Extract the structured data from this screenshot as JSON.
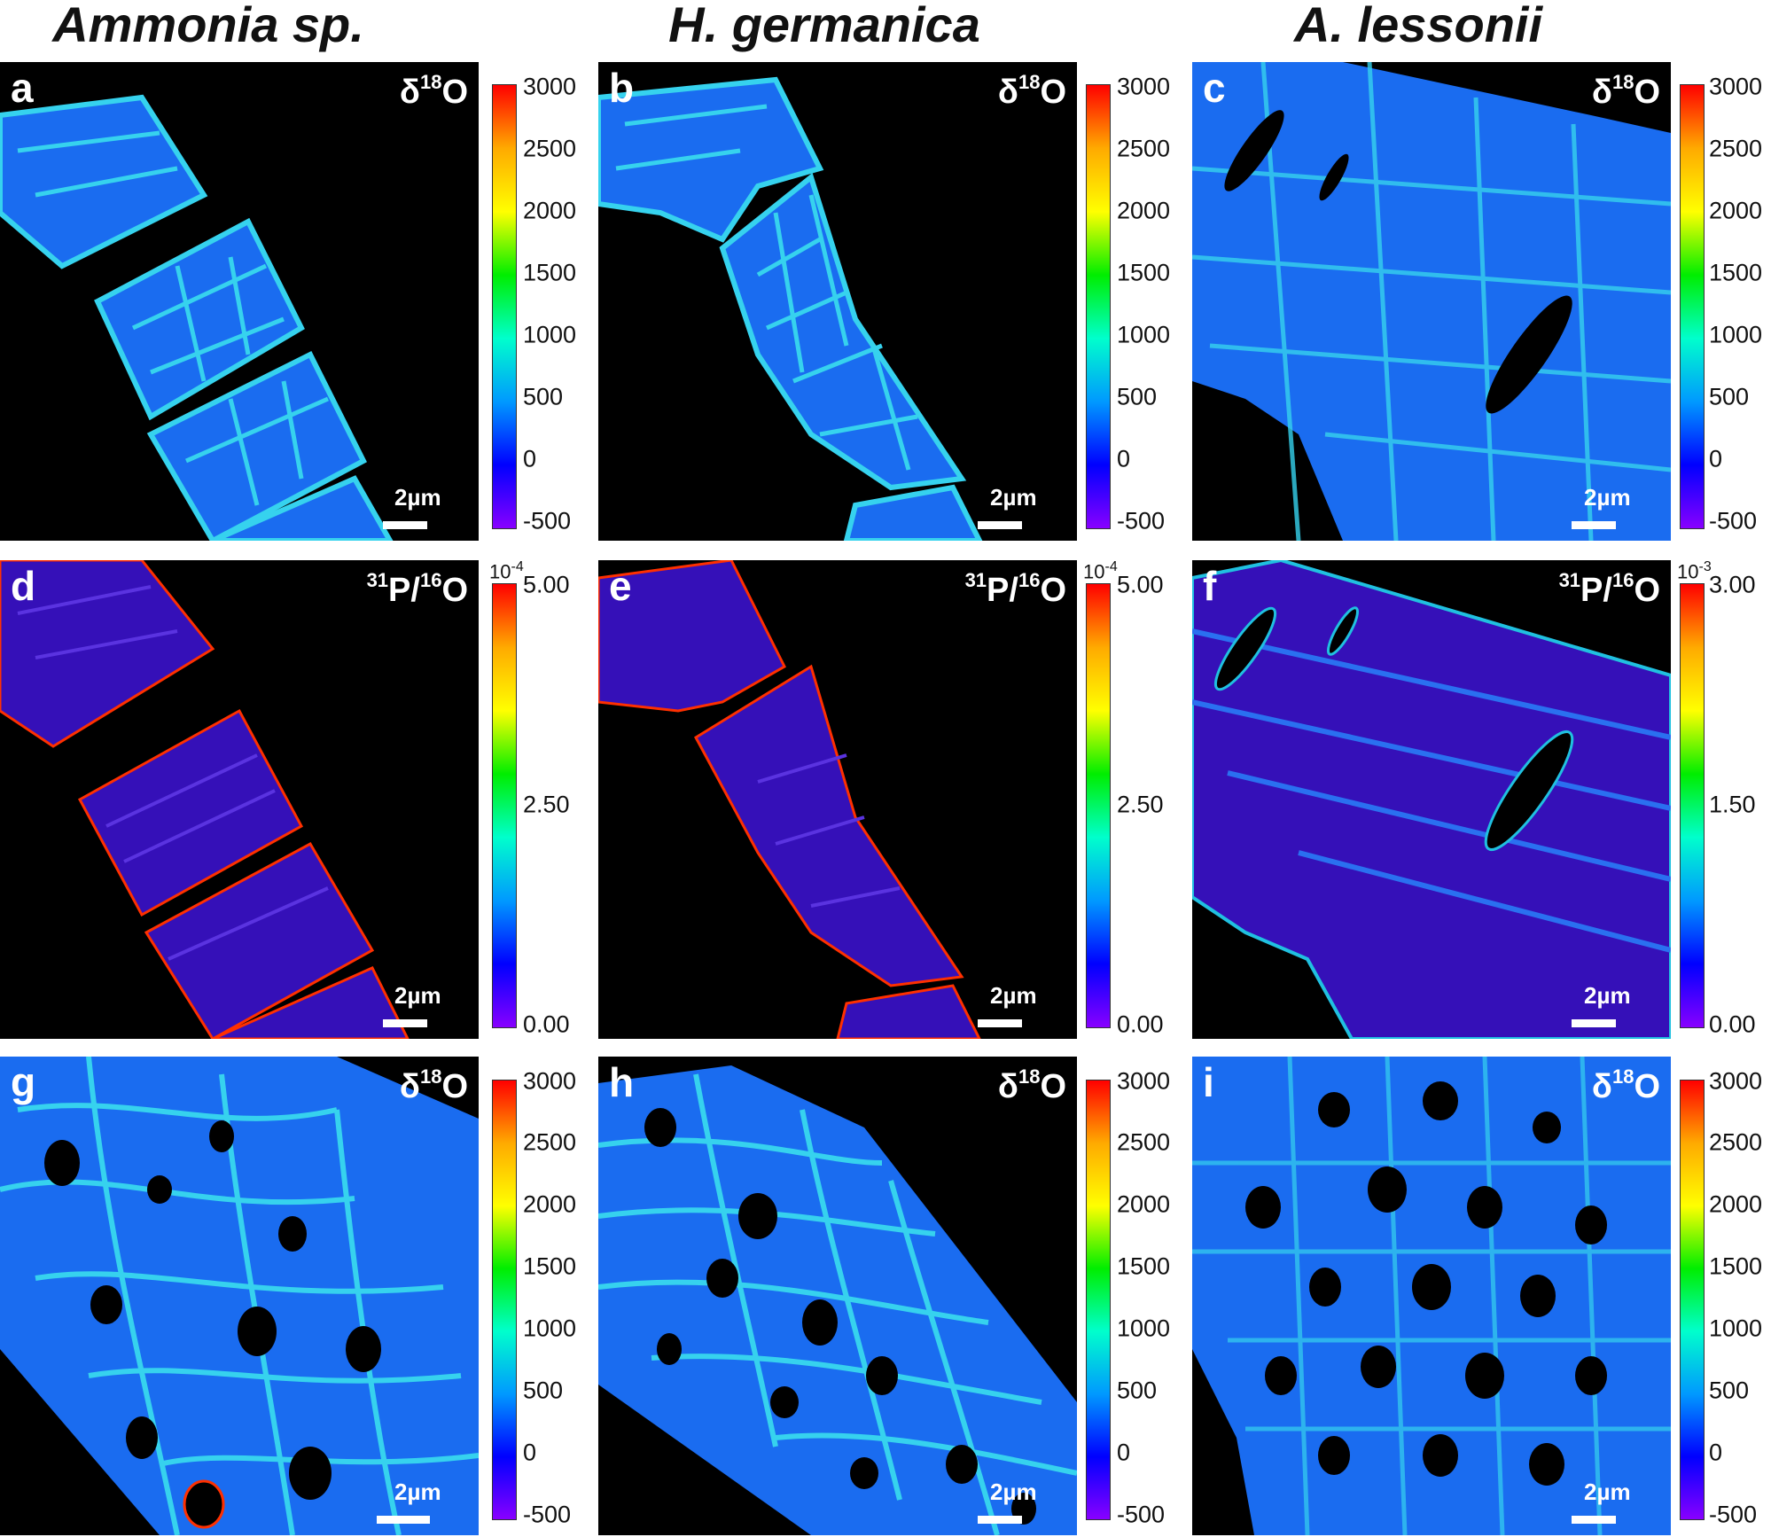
{
  "column_titles": [
    "Ammonia sp.",
    "H. germanica",
    "A. lessonii"
  ],
  "panels": [
    {
      "letter": "a",
      "label_base": "δ",
      "label_sup": "18",
      "label_rest": "O",
      "scale": "2µm"
    },
    {
      "letter": "b",
      "label_base": "δ",
      "label_sup": "18",
      "label_rest": "O",
      "scale": "2µm"
    },
    {
      "letter": "c",
      "label_base": "δ",
      "label_sup": "18",
      "label_rest": "O",
      "scale": "2µm"
    },
    {
      "letter": "d",
      "label_sup1": "31",
      "label_mid": "P/",
      "label_sup2": "16",
      "label_rest": "O",
      "scale": "2µm"
    },
    {
      "letter": "e",
      "label_sup1": "31",
      "label_mid": "P/",
      "label_sup2": "16",
      "label_rest": "O",
      "scale": "2µm"
    },
    {
      "letter": "f",
      "label_sup1": "31",
      "label_mid": "P/",
      "label_sup2": "16",
      "label_rest": "O",
      "scale": "2µm"
    },
    {
      "letter": "g",
      "label_base": "δ",
      "label_sup": "18",
      "label_rest": "O",
      "scale": "2µm"
    },
    {
      "letter": "h",
      "label_base": "δ",
      "label_sup": "18",
      "label_rest": "O",
      "scale": "2µm"
    },
    {
      "letter": "i",
      "label_base": "δ",
      "label_sup": "18",
      "label_rest": "O",
      "scale": "2µm"
    }
  ],
  "colorbars": {
    "d18O_ticks": [
      "3000",
      "2500",
      "2000",
      "1500",
      "1000",
      "500",
      "0",
      "-500"
    ],
    "P_e4_ticks": [
      "5.00",
      "2.50",
      "0.00"
    ],
    "P_e4_exponent": "10-4",
    "P_e3_ticks": [
      "3.00",
      "1.50",
      "0.00"
    ],
    "P_e3_exponent": "10-3"
  },
  "colors": {
    "background": "#000000",
    "colormap": [
      "#ff0000",
      "#ffaa00",
      "#ffff00",
      "#00ee00",
      "#00ffcc",
      "#0099ff",
      "#0000ff",
      "#8800ff"
    ],
    "map_fill": "#1a6cf0",
    "map_veins": "#36d2ee",
    "p_fill": "#3510b8",
    "p_edge": "#ff3000"
  }
}
